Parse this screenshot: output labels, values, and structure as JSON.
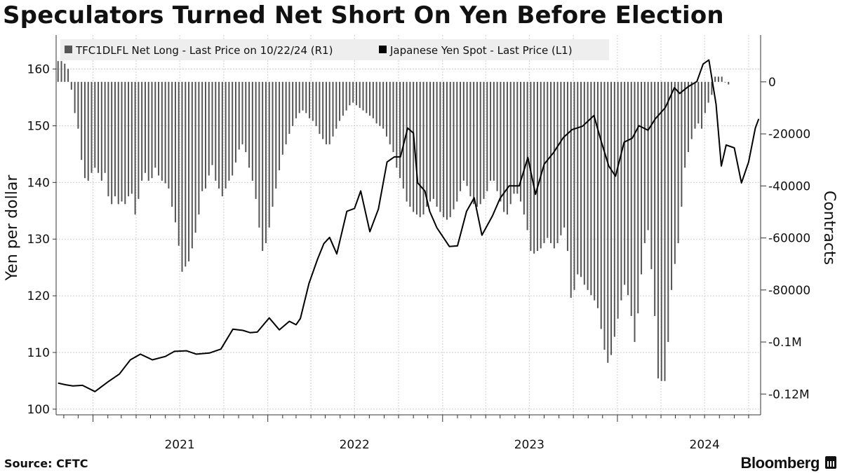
{
  "title": "Speculators Turned Net Short On Yen Before Election",
  "source": "Source: CFTC",
  "brand": "Bloomberg",
  "colors": {
    "bars": "#555555",
    "line": "#000000",
    "grid": "#cfcfcf",
    "legend_bg": "#eeeeee"
  },
  "chart_data": [
    {
      "type": "bar",
      "axis": "right",
      "name": "TFC1DLFL Net Long - Last Price on 10/22/24 (R1)",
      "ylabel": "Contracts",
      "ylim": [
        -128000,
        18000
      ],
      "yticks": [
        0,
        -20000,
        -40000,
        -60000,
        -80000,
        -100000,
        -120000
      ],
      "ytick_labels": [
        "0",
        "-20000",
        "-40000",
        "-60000",
        "-80000",
        "-0.1M",
        "-0.12M"
      ],
      "x_start": "2020-10-20",
      "x_step_days": 7,
      "values": [
        8000,
        8000,
        7000,
        5000,
        -3000,
        -12000,
        -18000,
        -30000,
        -37000,
        -38000,
        -35000,
        -33000,
        -35000,
        -38000,
        -35000,
        -44000,
        -47000,
        -44000,
        -47000,
        -46000,
        -47000,
        -44000,
        -43000,
        -51000,
        -45000,
        -38000,
        -35000,
        -38000,
        -37000,
        -33000,
        -36000,
        -38000,
        -39000,
        -41000,
        -48000,
        -54000,
        -63000,
        -73000,
        -71000,
        -69000,
        -64000,
        -58000,
        -51000,
        -42000,
        -41000,
        -36000,
        -32000,
        -38000,
        -41000,
        -44000,
        -41000,
        -38000,
        -36000,
        -31000,
        -26000,
        -24000,
        -27000,
        -33000,
        -38000,
        -45000,
        -56000,
        -65000,
        -62000,
        -56000,
        -48000,
        -41000,
        -34000,
        -28000,
        -24000,
        -20000,
        -17000,
        -14000,
        -12000,
        -11000,
        -12000,
        -14000,
        -15000,
        -17000,
        -20000,
        -22000,
        -24000,
        -24000,
        -21000,
        -18000,
        -15000,
        -13000,
        -11000,
        -9000,
        -8000,
        -9000,
        -10000,
        -11000,
        -12000,
        -13000,
        -14000,
        -16000,
        -17000,
        -18000,
        -21000,
        -24000,
        -27000,
        -33000,
        -37000,
        -41000,
        -46000,
        -48000,
        -50000,
        -51000,
        -52000,
        -51000,
        -48000,
        -46000,
        -45000,
        -48000,
        -50000,
        -52000,
        -53000,
        -52000,
        -49000,
        -46000,
        -42000,
        -38000,
        -40000,
        -44000,
        -47000,
        -48000,
        -47000,
        -45000,
        -42000,
        -38000,
        -38000,
        -42000,
        -46000,
        -50000,
        -51000,
        -47000,
        -43000,
        -43000,
        -46000,
        -51000,
        -57000,
        -65000,
        -66000,
        -65000,
        -64000,
        -62000,
        -60000,
        -62000,
        -64000,
        -62000,
        -59000,
        -56000,
        -65000,
        -83000,
        -80000,
        -74000,
        -75000,
        -78000,
        -80000,
        -82000,
        -84000,
        -87000,
        -95000,
        -103000,
        -108000,
        -105000,
        -98000,
        -91000,
        -84000,
        -78000,
        -82000,
        -90000,
        -100000,
        -89000,
        -74000,
        -62000,
        -57000,
        -72000,
        -90000,
        -114000,
        -115000,
        -115000,
        -100000,
        -80000,
        -70000,
        -62000,
        -48000,
        -33000,
        -27000,
        -22000,
        -18000,
        -16000,
        -18000,
        -12000,
        -8000,
        -5000,
        2000,
        2000,
        2000,
        0,
        -1000
      ]
    },
    {
      "type": "line",
      "axis": "left",
      "name": "Japanese Yen Spot - Last Price (L1)",
      "ylabel": "Yen per dollar",
      "ylim": [
        99,
        166
      ],
      "yticks": [
        100,
        110,
        120,
        130,
        140,
        150,
        160
      ],
      "x": [
        "2020-10-20",
        "2020-11-05",
        "2020-11-20",
        "2020-12-10",
        "2021-01-05",
        "2021-02-01",
        "2021-02-25",
        "2021-03-20",
        "2021-04-10",
        "2021-05-05",
        "2021-06-01",
        "2021-06-20",
        "2021-07-15",
        "2021-08-05",
        "2021-09-01",
        "2021-09-25",
        "2021-10-20",
        "2021-11-10",
        "2021-11-25",
        "2021-12-10",
        "2022-01-04",
        "2022-01-25",
        "2022-02-15",
        "2022-03-01",
        "2022-03-10",
        "2022-03-28",
        "2022-04-15",
        "2022-04-28",
        "2022-05-10",
        "2022-05-25",
        "2022-06-15",
        "2022-07-01",
        "2022-07-14",
        "2022-08-02",
        "2022-08-20",
        "2022-09-07",
        "2022-09-22",
        "2022-10-05",
        "2022-10-20",
        "2022-11-01",
        "2022-11-10",
        "2022-11-25",
        "2022-12-05",
        "2022-12-20",
        "2023-01-15",
        "2023-02-01",
        "2023-02-20",
        "2023-03-08",
        "2023-03-24",
        "2023-04-15",
        "2023-05-01",
        "2023-05-20",
        "2023-06-10",
        "2023-06-28",
        "2023-07-14",
        "2023-08-01",
        "2023-08-20",
        "2023-09-10",
        "2023-09-28",
        "2023-10-20",
        "2023-11-13",
        "2023-11-28",
        "2023-12-14",
        "2023-12-28",
        "2024-01-15",
        "2024-02-01",
        "2024-02-15",
        "2024-03-05",
        "2024-03-20",
        "2024-04-10",
        "2024-04-29",
        "2024-05-10",
        "2024-05-28",
        "2024-06-15",
        "2024-06-28",
        "2024-07-10",
        "2024-07-25",
        "2024-08-05",
        "2024-08-15",
        "2024-09-01",
        "2024-09-16",
        "2024-10-01",
        "2024-10-15",
        "2024-10-22"
      ],
      "values": [
        104.6,
        104.3,
        104.1,
        104.2,
        103.1,
        104.8,
        106.2,
        108.7,
        109.7,
        108.7,
        109.3,
        110.2,
        110.3,
        109.7,
        109.9,
        110.6,
        114.1,
        113.9,
        113.5,
        113.6,
        116.1,
        114.0,
        115.5,
        114.9,
        116.0,
        122.2,
        126.5,
        129.2,
        130.3,
        127.4,
        134.9,
        135.4,
        138.5,
        131.3,
        135.3,
        143.6,
        144.5,
        144.5,
        149.6,
        148.7,
        139.9,
        138.5,
        134.9,
        132.0,
        128.7,
        128.8,
        134.9,
        137.3,
        130.7,
        134.1,
        137.2,
        139.4,
        139.4,
        144.4,
        137.9,
        143.2,
        145.2,
        147.9,
        149.3,
        149.9,
        151.8,
        147.3,
        142.9,
        141.1,
        147.1,
        147.8,
        150.0,
        149.2,
        151.2,
        153.2,
        156.7,
        155.7,
        156.9,
        157.8,
        160.9,
        161.6,
        153.8,
        142.9,
        146.6,
        146.1,
        139.9,
        143.6,
        149.6,
        151.2
      ]
    }
  ]
}
